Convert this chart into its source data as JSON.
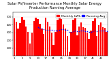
{
  "title": "Solar PV/Inverter Performance Monthly Solar Energy Production Running Average",
  "bar_values": [
    480,
    440,
    350,
    420,
    500,
    460,
    380,
    310,
    160,
    300,
    450,
    490,
    470,
    410,
    350,
    280,
    490,
    440,
    380,
    300,
    140,
    310,
    460,
    500,
    475,
    400,
    350,
    250,
    50,
    310,
    460,
    490,
    260,
    380,
    430,
    370,
    360,
    300,
    220,
    320,
    450,
    480,
    250,
    390,
    430,
    370,
    360,
    310
  ],
  "avg_values": [
    null,
    null,
    null,
    null,
    null,
    null,
    null,
    null,
    null,
    null,
    null,
    null,
    370,
    360,
    350,
    340,
    335,
    330,
    330,
    335,
    325,
    320,
    325,
    335,
    340,
    338,
    335,
    330,
    310,
    308,
    315,
    325,
    315,
    318,
    322,
    320,
    318,
    312,
    305,
    308,
    318,
    328,
    318,
    322,
    328,
    325,
    322,
    318
  ],
  "bar_color": "#ff0000",
  "avg_color": "#0000ff",
  "bg_color": "#ffffff",
  "grid_color": "#aaaaaa",
  "ylim_max": 560,
  "legend_bar": "Monthly kWh",
  "legend_avg": "Running Avg",
  "title_fontsize": 3.8,
  "legend_fontsize": 3.2,
  "tick_fontsize": 2.8
}
